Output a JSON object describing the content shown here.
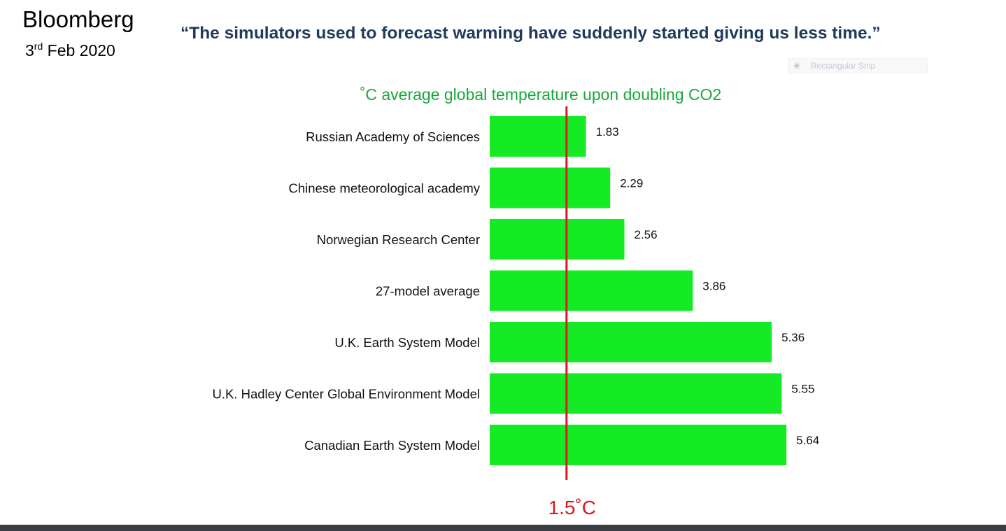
{
  "header": {
    "source": "Bloomberg",
    "date_ordinal": "3",
    "date_suffix": "rd",
    "date_rest": " Feb 2020",
    "quote": "“The simulators used to forecast warming have suddenly started giving us less time.”"
  },
  "snip_tooltip": {
    "label": "Rectangular Snip",
    "icon": "radio-dot-icon"
  },
  "chart_data": {
    "type": "bar",
    "orientation": "horizontal",
    "title": "˚C average global  temperature upon doubling CO2",
    "categories": [
      "Russian Academy of Sciences",
      "Chinese meteorological academy",
      "Norwegian Research Center",
      "27-model average",
      "U.K. Earth System Model",
      "U.K. Hadley Center Global Environment Model",
      "Canadian Earth System Model"
    ],
    "values": [
      1.83,
      2.29,
      2.56,
      3.86,
      5.36,
      5.55,
      5.64
    ],
    "value_labels": [
      "1.83",
      "2.29",
      "2.56",
      "3.86",
      "5.36",
      "5.55",
      "5.64"
    ],
    "xlim": [
      0,
      6
    ],
    "grid": false,
    "reference_line": {
      "value": 1.5,
      "label": "1.5˚C",
      "color": "#e0161b"
    },
    "colors": {
      "bar": "#15eb24",
      "title": "#17a83a",
      "reference": "#e0161b"
    }
  }
}
